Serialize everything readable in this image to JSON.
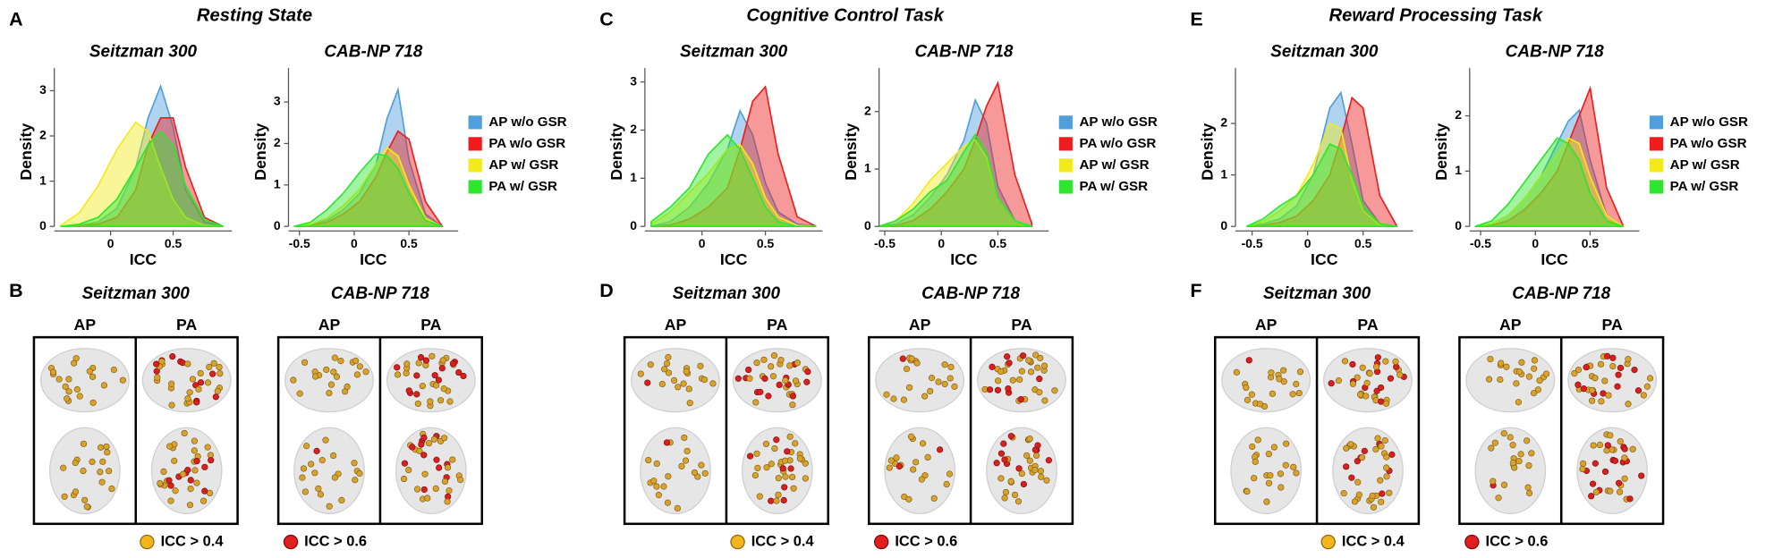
{
  "sections": [
    {
      "label": "A",
      "title": "Resting State",
      "brain_label": "B",
      "brain_panels": [
        {
          "title": "Seitzman 300",
          "columns": [
            "AP",
            "PA"
          ]
        },
        {
          "title": "CAB-NP 718",
          "columns": [
            "AP",
            "PA"
          ]
        }
      ],
      "brain_legend": [
        "ICC > 0.4",
        "ICC > 0.6"
      ]
    },
    {
      "label": "C",
      "title": "Cognitive Control Task",
      "brain_label": "D",
      "brain_panels": [
        {
          "title": "Seitzman 300",
          "columns": [
            "AP",
            "PA"
          ]
        },
        {
          "title": "CAB-NP 718",
          "columns": [
            "AP",
            "PA"
          ]
        }
      ],
      "brain_legend": [
        "ICC > 0.4",
        "ICC > 0.6"
      ]
    },
    {
      "label": "E",
      "title": "Reward Processing Task",
      "brain_label": "F",
      "brain_panels": [
        {
          "title": "Seitzman 300",
          "columns": [
            "AP",
            "PA"
          ]
        },
        {
          "title": "CAB-NP 718",
          "columns": [
            "AP",
            "PA"
          ]
        }
      ],
      "brain_legend": [
        "ICC > 0.4",
        "ICC > 0.6"
      ]
    }
  ],
  "chart_data": [
    {
      "type": "density",
      "title": "Seitzman 300",
      "x_label": "ICC",
      "y_label": "Density",
      "x": [
        -0.4,
        -0.25,
        -0.1,
        0.05,
        0.2,
        0.3,
        0.4,
        0.5,
        0.6,
        0.75,
        0.9
      ],
      "xlim": [
        -0.45,
        0.97
      ],
      "xticks": [
        0,
        0.5
      ],
      "ylim": [
        0,
        3.3
      ],
      "yticks": [
        0,
        1,
        2,
        3
      ],
      "series": [
        {
          "color": "#4f9fdc",
          "values": [
            0,
            0.02,
            0.1,
            0.4,
            1.3,
            2.4,
            3.1,
            2.2,
            0.8,
            0.1,
            0
          ]
        },
        {
          "color": "#ee1c1c",
          "values": [
            0,
            0.01,
            0.05,
            0.2,
            0.8,
            1.8,
            2.4,
            2.4,
            1.3,
            0.2,
            0
          ]
        },
        {
          "color": "#f2ea1c",
          "values": [
            0.02,
            0.3,
            0.9,
            1.7,
            2.3,
            2.1,
            1.3,
            0.6,
            0.2,
            0.02,
            0
          ]
        },
        {
          "color": "#2ee62e",
          "values": [
            0,
            0.05,
            0.2,
            0.6,
            1.3,
            1.8,
            2.1,
            1.8,
            0.9,
            0.15,
            0
          ]
        }
      ]
    },
    {
      "type": "density",
      "title": "CAB-NP 718",
      "x_label": "ICC",
      "y_label": "Density",
      "x": [
        -0.55,
        -0.4,
        -0.25,
        -0.1,
        0.05,
        0.2,
        0.3,
        0.4,
        0.5,
        0.65,
        0.8
      ],
      "xlim": [
        -0.6,
        0.95
      ],
      "xticks": [
        -0.5,
        0,
        0.5
      ],
      "ylim": [
        0,
        3.6
      ],
      "yticks": [
        0,
        1,
        2,
        3
      ],
      "series": [
        {
          "name": "AP w/o GSR",
          "color": "#4f9fdc",
          "values": [
            0,
            0.05,
            0.15,
            0.4,
            0.8,
            1.5,
            2.6,
            3.3,
            1.6,
            0.3,
            0
          ]
        },
        {
          "name": "PA w/o GSR",
          "color": "#ee1c1c",
          "values": [
            0,
            0.03,
            0.1,
            0.3,
            0.6,
            1.2,
            1.8,
            2.3,
            2.1,
            0.6,
            0.02
          ]
        },
        {
          "name": "AP w/ GSR",
          "color": "#f2ea1c",
          "values": [
            0,
            0.05,
            0.2,
            0.5,
            0.9,
            1.5,
            1.9,
            1.7,
            1.0,
            0.2,
            0
          ]
        },
        {
          "name": "PA w/ GSR",
          "color": "#2ee62e",
          "values": [
            0,
            0.1,
            0.4,
            0.8,
            1.3,
            1.75,
            1.7,
            1.4,
            0.8,
            0.15,
            0
          ]
        }
      ]
    },
    {
      "type": "density",
      "title": "Seitzman 300",
      "x_label": "ICC",
      "y_label": "Density",
      "x": [
        -0.4,
        -0.25,
        -0.1,
        0.05,
        0.2,
        0.3,
        0.4,
        0.5,
        0.6,
        0.75,
        0.9
      ],
      "xlim": [
        -0.45,
        0.95
      ],
      "xticks": [
        0,
        0.5
      ],
      "ylim": [
        0,
        3.1
      ],
      "yticks": [
        0,
        1,
        2,
        3
      ],
      "series": [
        {
          "color": "#4f9fdc",
          "values": [
            0,
            0.1,
            0.4,
            0.9,
            1.6,
            2.4,
            1.9,
            0.9,
            0.3,
            0.05,
            0
          ]
        },
        {
          "color": "#ee1c1c",
          "values": [
            0,
            0.03,
            0.15,
            0.4,
            0.8,
            1.6,
            2.6,
            2.9,
            1.5,
            0.2,
            0
          ]
        },
        {
          "color": "#f2ea1c",
          "values": [
            0.05,
            0.3,
            0.7,
            1.1,
            1.6,
            1.7,
            1.3,
            0.6,
            0.2,
            0.02,
            0
          ]
        },
        {
          "color": "#2ee62e",
          "values": [
            0.1,
            0.4,
            0.8,
            1.5,
            1.9,
            1.6,
            1.0,
            0.4,
            0.1,
            0,
            0
          ]
        }
      ]
    },
    {
      "type": "density",
      "title": "CAB-NP 718",
      "x_label": "ICC",
      "y_label": "Density",
      "x": [
        -0.55,
        -0.4,
        -0.25,
        -0.1,
        0.05,
        0.2,
        0.3,
        0.4,
        0.5,
        0.65,
        0.8
      ],
      "xlim": [
        -0.55,
        0.95
      ],
      "xticks": [
        -0.5,
        0,
        0.5
      ],
      "ylim": [
        0,
        2.6
      ],
      "yticks": [
        0,
        1,
        2
      ],
      "series": [
        {
          "name": "AP w/o GSR",
          "color": "#4f9fdc",
          "values": [
            0,
            0.05,
            0.2,
            0.5,
            0.9,
            1.5,
            2.2,
            1.8,
            0.7,
            0.1,
            0
          ]
        },
        {
          "name": "PA w/o GSR",
          "color": "#ee1c1c",
          "values": [
            0,
            0.02,
            0.1,
            0.3,
            0.6,
            1.0,
            1.5,
            2.1,
            2.5,
            0.9,
            0.05
          ]
        },
        {
          "name": "AP w/ GSR",
          "color": "#f2ea1c",
          "values": [
            0,
            0.1,
            0.4,
            0.8,
            1.1,
            1.4,
            1.5,
            1.2,
            0.5,
            0.1,
            0
          ]
        },
        {
          "name": "PA w/ GSR",
          "color": "#2ee62e",
          "values": [
            0,
            0.1,
            0.3,
            0.6,
            0.8,
            1.3,
            1.6,
            1.3,
            0.5,
            0.1,
            0
          ]
        }
      ]
    },
    {
      "type": "density",
      "title": "Seitzman 300",
      "x_label": "ICC",
      "y_label": "Density",
      "x": [
        -0.55,
        -0.4,
        -0.25,
        -0.1,
        0.05,
        0.2,
        0.3,
        0.4,
        0.5,
        0.65,
        0.8
      ],
      "xlim": [
        -0.65,
        0.95
      ],
      "xticks": [
        -0.5,
        0,
        0.5
      ],
      "ylim": [
        0,
        2.9
      ],
      "yticks": [
        0,
        1,
        2
      ],
      "series": [
        {
          "color": "#4f9fdc",
          "values": [
            0,
            0.05,
            0.15,
            0.4,
            1.0,
            2.3,
            2.6,
            1.6,
            0.5,
            0.05,
            0
          ]
        },
        {
          "color": "#ee1c1c",
          "values": [
            0,
            0.02,
            0.08,
            0.2,
            0.5,
            1.0,
            1.7,
            2.5,
            2.3,
            0.6,
            0.02
          ]
        },
        {
          "color": "#f2ea1c",
          "values": [
            0,
            0.1,
            0.3,
            0.6,
            1.2,
            2.0,
            1.9,
            0.9,
            0.3,
            0.02,
            0
          ]
        },
        {
          "color": "#2ee62e",
          "values": [
            0,
            0.15,
            0.4,
            0.6,
            1.0,
            1.6,
            1.5,
            1.0,
            0.4,
            0.05,
            0
          ]
        }
      ]
    },
    {
      "type": "density",
      "title": "CAB-NP 718",
      "x_label": "ICC",
      "y_label": "Density",
      "x": [
        -0.55,
        -0.4,
        -0.25,
        -0.1,
        0.05,
        0.2,
        0.3,
        0.4,
        0.5,
        0.65,
        0.8
      ],
      "xlim": [
        -0.6,
        0.95
      ],
      "xticks": [
        -0.5,
        0,
        0.5
      ],
      "ylim": [
        0,
        2.7
      ],
      "yticks": [
        0,
        1,
        2
      ],
      "series": [
        {
          "name": "AP w/o GSR",
          "color": "#4f9fdc",
          "values": [
            0,
            0.05,
            0.2,
            0.5,
            0.9,
            1.5,
            1.9,
            2.1,
            1.2,
            0.2,
            0
          ]
        },
        {
          "name": "PA w/o GSR",
          "color": "#ee1c1c",
          "values": [
            0,
            0.02,
            0.1,
            0.3,
            0.6,
            1.0,
            1.5,
            2.0,
            2.5,
            0.7,
            0.02
          ]
        },
        {
          "name": "AP w/ GSR",
          "color": "#f2ea1c",
          "values": [
            0,
            0.05,
            0.2,
            0.5,
            0.9,
            1.3,
            1.6,
            1.5,
            0.9,
            0.2,
            0
          ]
        },
        {
          "name": "PA w/ GSR",
          "color": "#2ee62e",
          "values": [
            0,
            0.1,
            0.4,
            0.8,
            1.2,
            1.6,
            1.5,
            1.2,
            0.6,
            0.1,
            0
          ]
        }
      ]
    }
  ]
}
